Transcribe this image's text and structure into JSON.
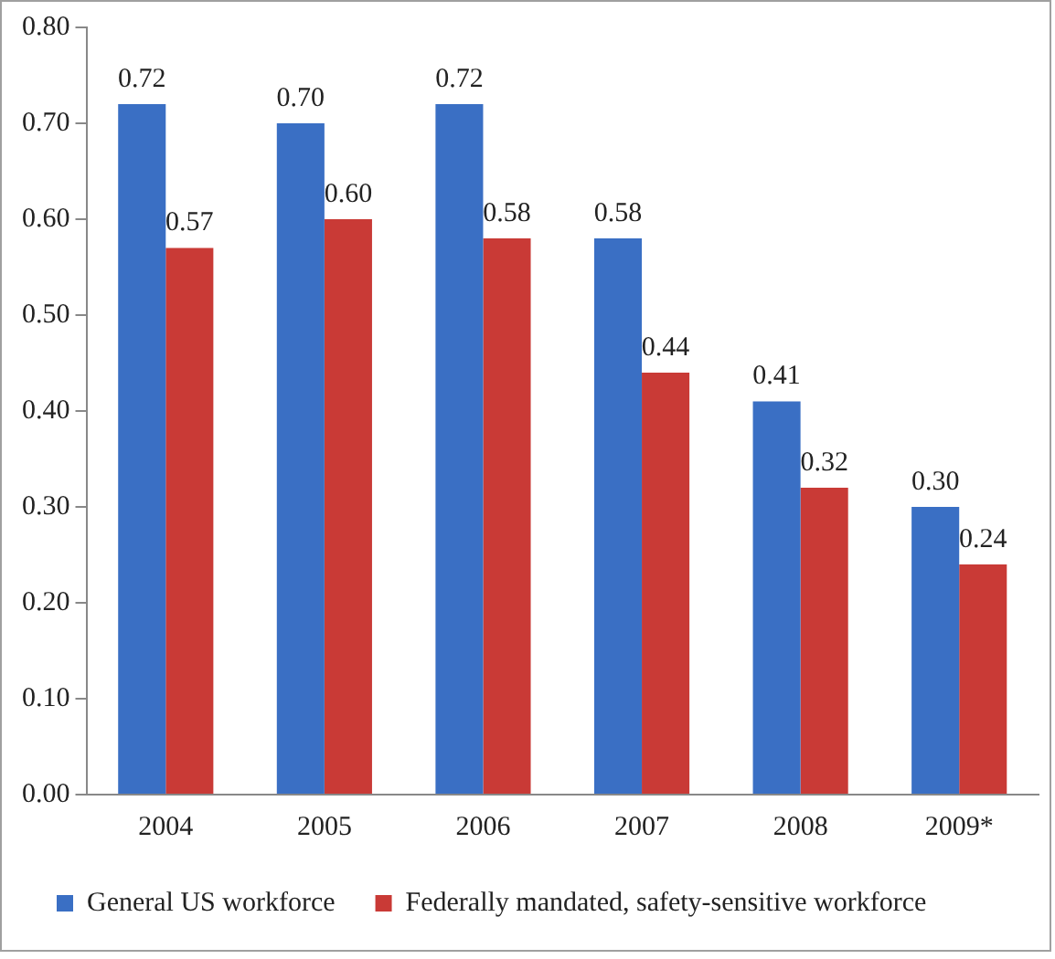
{
  "chart_data": {
    "type": "bar",
    "categories": [
      "2004",
      "2005",
      "2006",
      "2007",
      "2008",
      "2009*"
    ],
    "series": [
      {
        "name": "General US workforce",
        "color": "#3a6fc4",
        "values": [
          0.72,
          0.7,
          0.72,
          0.58,
          0.41,
          0.3
        ],
        "value_labels": [
          "0.72",
          "0.70",
          "0.72",
          "0.58",
          "0.41",
          "0.30"
        ]
      },
      {
        "name": "Federally mandated, safety-sensitive workforce",
        "color": "#c93a36",
        "values": [
          0.57,
          0.6,
          0.58,
          0.44,
          0.32,
          0.24
        ],
        "value_labels": [
          "0.57",
          "0.60",
          "0.58",
          "0.44",
          "0.32",
          "0.24"
        ]
      }
    ],
    "ylim": [
      0,
      0.8
    ],
    "yticks": [
      {
        "value": 0,
        "label": "0.00"
      },
      {
        "value": 0.1,
        "label": "0.10"
      },
      {
        "value": 0.2,
        "label": "0.20"
      },
      {
        "value": 0.3,
        "label": "0.30"
      },
      {
        "value": 0.4,
        "label": "0.40"
      },
      {
        "value": 0.5,
        "label": "0.50"
      },
      {
        "value": 0.6,
        "label": "0.60"
      },
      {
        "value": 0.7,
        "label": "0.70"
      },
      {
        "value": 0.8,
        "label": "0.80"
      }
    ],
    "grid": false,
    "legend": "bottom left"
  }
}
